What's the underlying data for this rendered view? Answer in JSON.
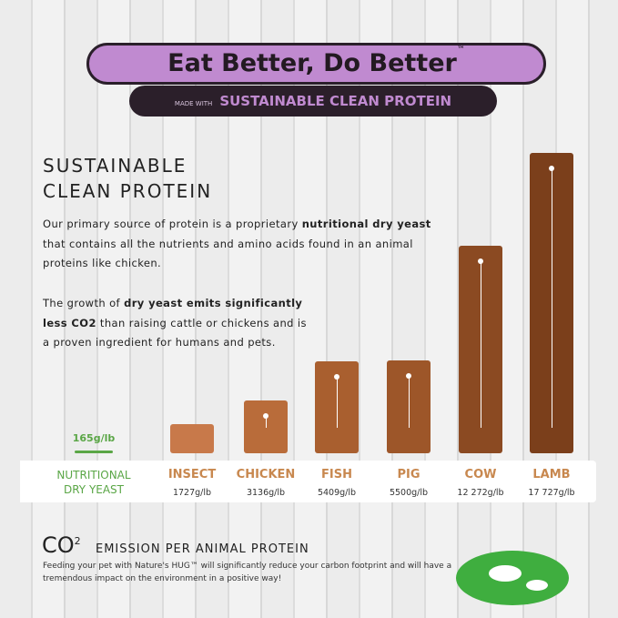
{
  "header": {
    "title": "Eat Better, Do Better",
    "title_mark": "™",
    "made_with": "MADE WITH",
    "subtitle": "SUSTAINABLE CLEAN PROTEIN"
  },
  "intro": {
    "heading_line1": "SUSTAINABLE",
    "heading_line2": "CLEAN PROTEIN",
    "p1": [
      "Our primary source of protein is a proprietary ",
      "nutritional dry yeast",
      " that contains all the nutrients and amino acids found in an animal proteins like chicken."
    ],
    "p2": [
      "The growth of ",
      "dry yeast emits significantly less CO2",
      " than raising cattle or chickens and is a proven ingredient for humans and pets."
    ]
  },
  "chart_data": {
    "type": "bar",
    "categories": [
      "NUTRITIONAL DRY YEAST",
      "INSECT",
      "CHICKEN",
      "FISH",
      "PIG",
      "COW",
      "LAMB"
    ],
    "values": [
      165,
      1727,
      3136,
      5409,
      5500,
      12272,
      17727
    ],
    "value_labels": [
      "165g/lb",
      "1727g/lb",
      "3136g/lb",
      "5409g/lb",
      "5500g/lb",
      "12 272g/lb",
      "17 727g/lb"
    ],
    "colors": [
      "#5aa646",
      "#c8794a",
      "#b96c3a",
      "#a95f2f",
      "#9d5629",
      "#8b4a22",
      "#7b3f1b"
    ]
  },
  "footer": {
    "co2": "CO",
    "co2_sup": "2",
    "heading": "EMISSION PER ANIMAL PROTEIN",
    "body": "Feeding your pet with Nature's HUG™ will significantly reduce your carbon footprint and will have a tremendous impact on the environment in a positive way!"
  }
}
